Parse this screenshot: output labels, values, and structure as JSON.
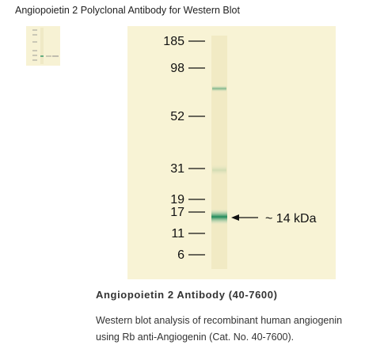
{
  "header": {
    "title": "Angiopoietin 2 Polyclonal Antibody for Western Blot"
  },
  "blot": {
    "markers": [
      "185",
      "98",
      "52",
      "31",
      "19",
      "17",
      "11",
      "6"
    ],
    "band_label": "~ 14 kDa"
  },
  "caption": {
    "title": "Angiopoietin 2 Antibody (40-7600)",
    "lines": [
      "Western blot analysis of recombinant human angiogenin",
      "using Rb anti-Angiogenin (Cat. No. 40-7600)."
    ]
  }
}
